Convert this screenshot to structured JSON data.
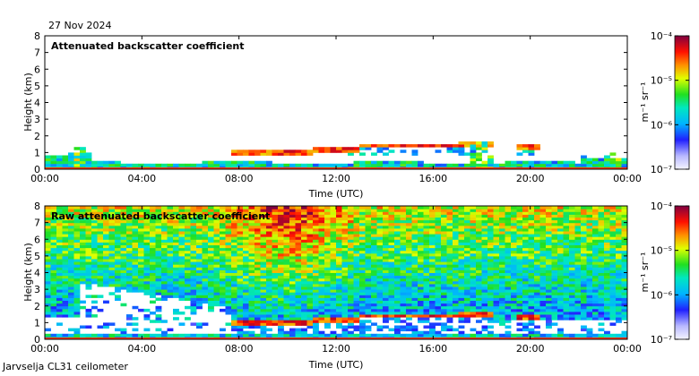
{
  "date_label": "27 Nov 2024",
  "footer_label": "Jarvselja CL31 ceilometer",
  "chart_data": [
    {
      "type": "heatmap",
      "title": "Attenuated backscatter coefficient",
      "xlabel": "Time (UTC)",
      "ylabel": "Height (km)",
      "xticks": [
        "00:00",
        "04:00",
        "08:00",
        "12:00",
        "16:00",
        "20:00",
        "00:00"
      ],
      "yticks": [
        "0",
        "1",
        "2",
        "3",
        "4",
        "5",
        "6",
        "7",
        "8"
      ],
      "xlim_hours": [
        0,
        24
      ],
      "ylim_km": [
        0,
        8
      ],
      "colorbar": {
        "scale": "log",
        "min_label": "10⁻⁷",
        "tick_labels": [
          "10⁻⁷",
          "10⁻⁶",
          "10⁻⁵",
          "10⁻⁴"
        ],
        "tick_exponents": [
          -7,
          -6,
          -5,
          -4
        ],
        "units": "m⁻¹ sr⁻¹"
      },
      "features": {
        "cloud_layer_km": [
          {
            "start_h": 7.7,
            "end_h": 11.0,
            "height_km": 1.0
          },
          {
            "start_h": 11.0,
            "end_h": 13.0,
            "height_km": 1.15
          },
          {
            "start_h": 13.0,
            "end_h": 17.0,
            "height_km": 1.4
          },
          {
            "start_h": 17.0,
            "end_h": 18.5,
            "height_km": 1.5
          },
          {
            "start_h": 19.5,
            "end_h": 20.3,
            "height_km": 1.35
          }
        ],
        "boundary_layer_top_km": 0.4
      }
    },
    {
      "type": "heatmap",
      "title": "Raw attenuated backscatter coefficient",
      "xlabel": "Time (UTC)",
      "ylabel": "Height (km)",
      "xticks": [
        "00:00",
        "04:00",
        "08:00",
        "12:00",
        "16:00",
        "20:00",
        "00:00"
      ],
      "yticks": [
        "0",
        "1",
        "2",
        "3",
        "4",
        "5",
        "6",
        "7",
        "8"
      ],
      "xlim_hours": [
        0,
        24
      ],
      "ylim_km": [
        0,
        8
      ],
      "colorbar": {
        "scale": "log",
        "tick_labels": [
          "10⁻⁷",
          "10⁻⁶",
          "10⁻⁵",
          "10⁻⁴"
        ],
        "tick_exponents": [
          -7,
          -6,
          -5,
          -4
        ],
        "units": "m⁻¹ sr⁻¹"
      }
    }
  ]
}
